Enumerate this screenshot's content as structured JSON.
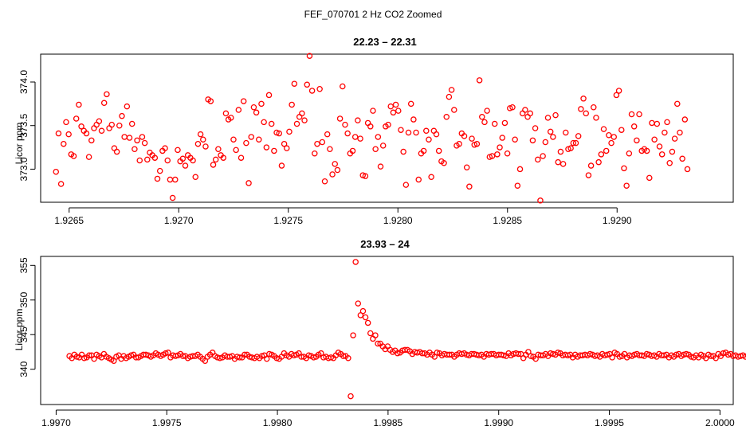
{
  "page_title": "FEF_070701  2 Hz CO2 Zoomed",
  "chart_data": [
    {
      "type": "scatter",
      "title": "22.23 – 22.31",
      "xlabel": "",
      "ylabel": "Licor ppm",
      "xlim": [
        1.92637,
        1.92953
      ],
      "ylim": [
        372.62,
        374.32
      ],
      "xticks": [
        1.9265,
        1.927,
        1.9275,
        1.928,
        1.9285,
        1.929
      ],
      "xtick_labels": [
        "1.9265",
        "1.9270",
        "1.9275",
        "1.9280",
        "1.9285",
        "1.9290"
      ],
      "yticks": [
        373.0,
        373.5,
        374.0
      ],
      "ytick_labels": [
        "373.0",
        "373.5",
        "374.0"
      ],
      "marker_color": "#ff0000",
      "x_start": 1.92644,
      "x_step": 1.157e-05,
      "values": [
        372.97,
        373.41,
        372.83,
        373.29,
        373.54,
        373.4,
        373.17,
        373.15,
        373.58,
        373.74,
        373.49,
        373.44,
        373.41,
        373.14,
        373.33,
        373.47,
        373.51,
        373.55,
        373.44,
        373.76,
        373.86,
        373.47,
        373.51,
        373.24,
        373.2,
        373.5,
        373.61,
        373.37,
        373.72,
        373.36,
        373.52,
        373.23,
        373.33,
        373.1,
        373.37,
        373.3,
        373.11,
        373.19,
        373.16,
        373.13,
        372.89,
        372.98,
        373.21,
        373.24,
        373.1,
        372.88,
        372.67,
        372.88,
        373.22,
        373.09,
        373.12,
        373.04,
        373.16,
        373.13,
        373.1,
        372.91,
        373.29,
        373.4,
        373.34,
        373.26,
        373.8,
        373.78,
        373.05,
        373.11,
        373.23,
        373.16,
        373.13,
        373.64,
        373.57,
        373.59,
        373.34,
        373.22,
        373.68,
        373.13,
        373.78,
        373.3,
        372.84,
        373.37,
        373.71,
        373.65,
        373.34,
        373.75,
        373.54,
        373.25,
        373.85,
        373.52,
        373.21,
        373.42,
        373.41,
        373.04,
        373.29,
        373.24,
        373.43,
        373.74,
        373.98,
        373.52,
        373.6,
        373.64,
        373.56,
        373.97,
        374.3,
        373.9,
        373.18,
        373.29,
        373.92,
        373.31,
        372.86,
        373.4,
        373.23,
        372.94,
        373.06,
        372.99,
        373.58,
        373.95,
        373.51,
        373.41,
        373.18,
        373.21,
        373.37,
        373.56,
        373.35,
        372.93,
        372.92,
        373.53,
        373.49,
        373.67,
        373.23,
        373.37,
        373.03,
        373.27,
        373.49,
        373.51,
        373.72,
        373.65,
        373.74,
        373.67,
        373.45,
        373.2,
        372.82,
        373.42,
        373.75,
        373.57,
        373.42,
        372.88,
        373.18,
        373.21,
        373.44,
        373.34,
        372.91,
        373.44,
        373.4,
        373.21,
        373.09,
        373.07,
        373.6,
        373.83,
        373.91,
        373.68,
        373.27,
        373.29,
        373.41,
        373.38,
        373.02,
        372.8,
        373.35,
        373.28,
        373.29,
        374.02,
        373.6,
        373.54,
        373.67,
        373.14,
        373.15,
        373.52,
        373.17,
        373.25,
        373.36,
        373.53,
        373.18,
        373.7,
        373.71,
        373.34,
        372.81,
        373.0,
        373.64,
        373.68,
        373.6,
        373.64,
        373.33,
        373.47,
        373.11,
        372.64,
        373.15,
        373.31,
        373.59,
        373.43,
        373.37,
        373.62,
        373.08,
        373.2,
        373.06,
        373.42,
        373.23,
        373.24,
        373.3,
        373.3,
        373.38,
        373.69,
        373.81,
        373.64,
        372.93,
        373.04,
        373.71,
        373.59,
        373.08,
        373.17,
        373.46,
        373.21,
        373.39,
        373.3,
        373.37,
        373.85,
        373.9,
        373.45,
        373.01,
        372.81,
        373.18,
        373.63,
        373.49,
        373.33,
        373.63,
        373.21,
        373.23,
        373.21,
        372.9,
        373.53,
        373.34,
        373.52,
        373.26,
        373.17,
        373.42,
        373.54,
        373.07,
        373.2,
        373.35,
        373.75,
        373.42,
        373.12,
        373.57,
        373.0
      ]
    },
    {
      "type": "scatter",
      "title": "23.93 – 24",
      "xlabel": "",
      "ylabel": "Licor ppm",
      "xlim": [
        1.99693,
        2.00006
      ],
      "ylim": [
        334.9,
        356.3
      ],
      "xticks": [
        1.997,
        1.9975,
        1.998,
        1.9985,
        1.999,
        1.9995,
        2.0
      ],
      "xtick_labels": [
        "1.9970",
        "1.9975",
        "1.9980",
        "1.9985",
        "1.9990",
        "1.9995",
        "2.0000"
      ],
      "yticks": [
        340,
        345,
        350,
        355
      ],
      "ytick_labels": [
        "340",
        "345",
        "350",
        "355"
      ],
      "marker_color": "#ff0000",
      "x_start": 1.99706,
      "x_step": 1.115e-05,
      "values": [
        341.9,
        341.6,
        342.1,
        341.8,
        341.7,
        342.1,
        341.6,
        341.7,
        342.0,
        342.0,
        341.5,
        342.1,
        341.9,
        341.7,
        342.2,
        341.8,
        341.6,
        341.4,
        341.2,
        341.8,
        342.0,
        341.5,
        341.9,
        341.6,
        341.8,
        342.0,
        342.1,
        341.7,
        341.7,
        341.9,
        342.1,
        342.1,
        342.0,
        341.8,
        342.0,
        342.3,
        342.1,
        341.9,
        342.1,
        342.3,
        342.4,
        341.7,
        342.0,
        341.9,
        342.0,
        342.2,
        341.9,
        341.9,
        341.6,
        341.8,
        341.9,
        341.9,
        342.1,
        341.8,
        341.5,
        341.2,
        341.8,
        342.1,
        342.4,
        341.9,
        341.7,
        341.6,
        341.7,
        342.0,
        341.8,
        341.8,
        341.9,
        341.5,
        341.8,
        341.7,
        341.7,
        342.1,
        342.1,
        341.8,
        341.7,
        341.6,
        341.8,
        341.6,
        341.9,
        342.0,
        341.5,
        342.2,
        342.1,
        341.9,
        341.6,
        341.5,
        341.8,
        342.3,
        342.0,
        341.8,
        342.2,
        342.0,
        342.1,
        342.3,
        341.8,
        341.8,
        341.6,
        342.0,
        341.9,
        341.7,
        341.8,
        342.1,
        342.3,
        341.7,
        341.8,
        341.6,
        341.7,
        341.6,
        342.0,
        342.4,
        342.2,
        341.9,
        341.9,
        341.6,
        336.1,
        344.9,
        355.5,
        349.5,
        347.8,
        348.4,
        347.5,
        346.7,
        345.2,
        344.4,
        344.9,
        343.7,
        343.7,
        343.3,
        342.9,
        343.3,
        342.8,
        342.5,
        342.7,
        342.3,
        342.4,
        342.7,
        342.8,
        342.8,
        342.6,
        342.2,
        342.5,
        342.4,
        342.5,
        342.3,
        342.3,
        342.1,
        342.4,
        342.1,
        341.8,
        342.4,
        342.3,
        342.0,
        342.2,
        342.1,
        342.1,
        342.1,
        341.8,
        342.1,
        342.3,
        342.2,
        342.3,
        342.1,
        342.0,
        342.2,
        342.2,
        342.1,
        342.0,
        342.1,
        341.8,
        342.2,
        342.1,
        342.2,
        342.2,
        342.0,
        342.1,
        342.1,
        342.0,
        341.9,
        342.3,
        342.0,
        342.2,
        342.3,
        342.2,
        342.2,
        341.6,
        342.1,
        342.5,
        341.9,
        341.8,
        341.5,
        342.1,
        342.0,
        342.0,
        342.2,
        341.9,
        342.3,
        342.2,
        342.1,
        342.4,
        342.3,
        342.0,
        342.1,
        342.0,
        342.1,
        341.7,
        342.1,
        341.8,
        342.0,
        342.0,
        342.1,
        342.0,
        342.2,
        342.1,
        341.9,
        342.0,
        341.8,
        342.2,
        342.0,
        342.1,
        342.2,
        341.7,
        342.4,
        342.2,
        341.8,
        341.9,
        342.2,
        341.7,
        342.0,
        341.9,
        342.1,
        342.2,
        342.0,
        342.0,
        341.9,
        342.2,
        342.1,
        341.9,
        342.0,
        341.8,
        342.2,
        342.0,
        342.0,
        342.1,
        341.7,
        342.0,
        341.8,
        342.1,
        342.2,
        341.9,
        342.1,
        342.2,
        342.1,
        341.8,
        341.7,
        342.0,
        341.7,
        342.1,
        341.9,
        341.6,
        342.1,
        341.9,
        341.9,
        341.6,
        342.2,
        341.9,
        342.3,
        342.4,
        342.1,
        342.2,
        341.9,
        342.0,
        341.8,
        341.9,
        342.0,
        341.8,
        342.0,
        341.9
      ]
    }
  ]
}
